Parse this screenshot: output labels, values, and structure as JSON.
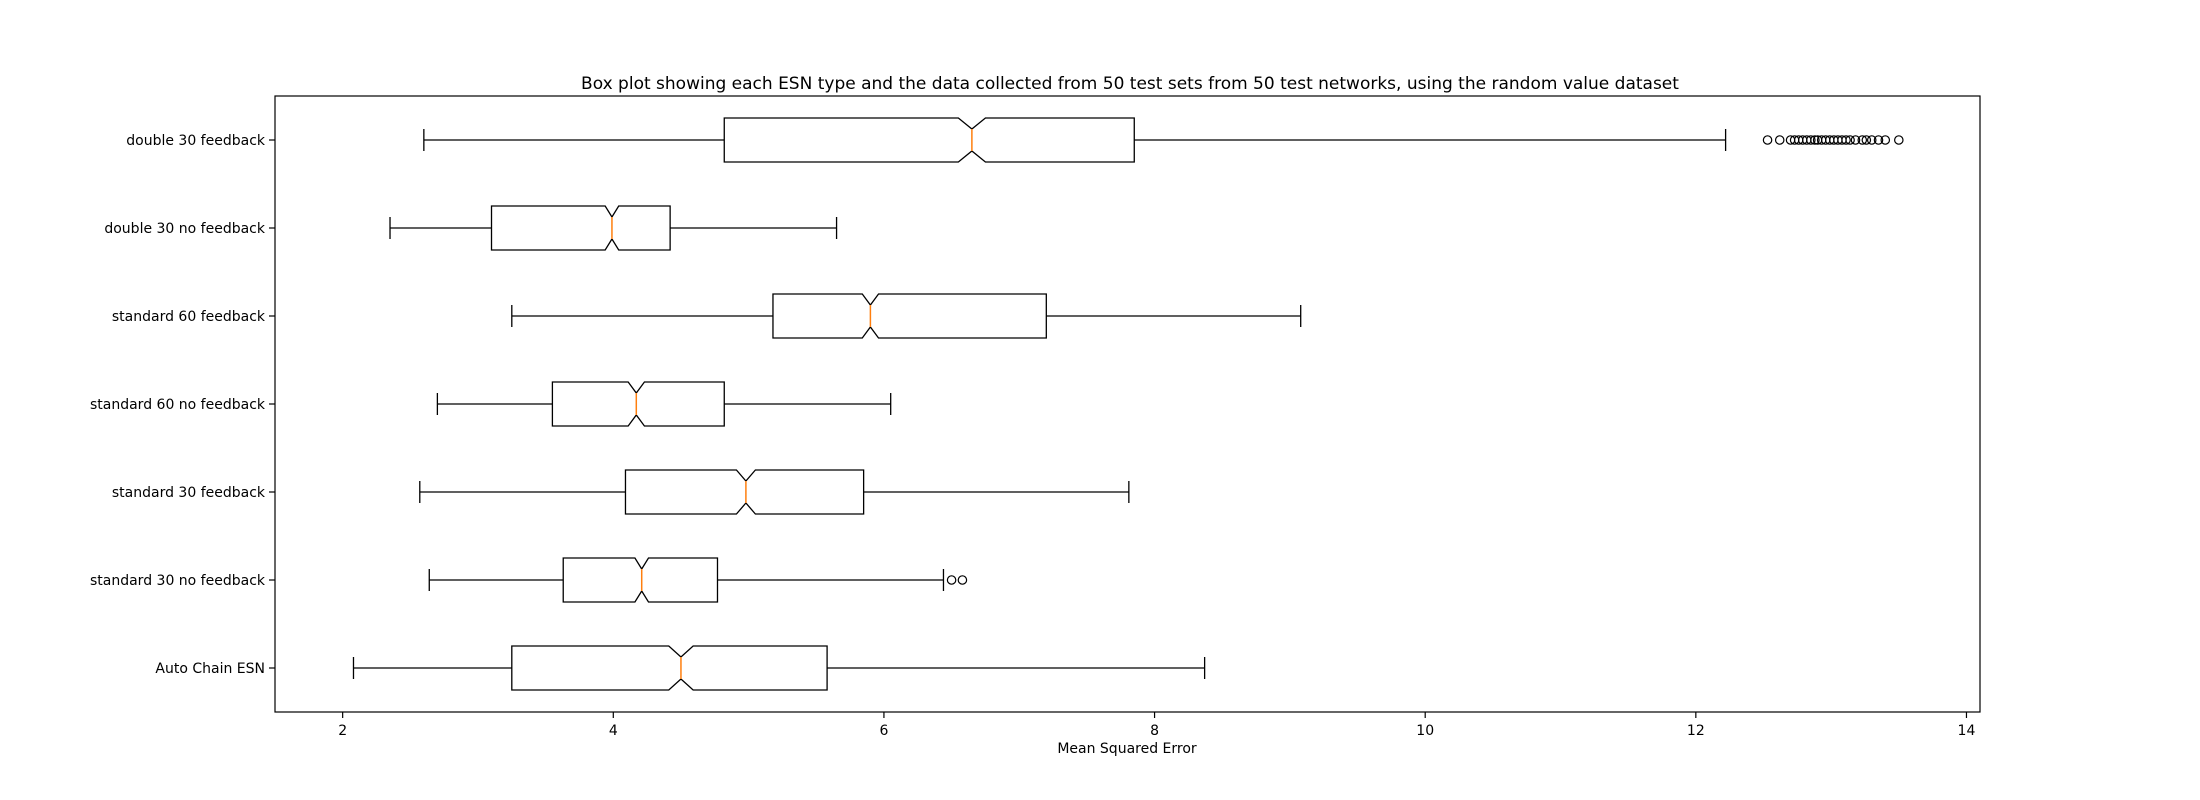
{
  "chart_data": {
    "type": "boxplot",
    "orientation": "horizontal",
    "notched": true,
    "title": "Box plot showing each ESN type and the data collected from 50 test sets from 50 test networks, using the random value dataset",
    "xlabel": "Mean Squared Error",
    "ylabel": "",
    "xlim": [
      1.5,
      14.1
    ],
    "xticks": [
      2,
      4,
      6,
      8,
      10,
      12,
      14
    ],
    "grid": false,
    "legend": "none",
    "colors": {
      "box": "#000000",
      "median": "#ff7f0e",
      "background": "#ffffff"
    },
    "categories": [
      "double 30 feedback",
      "double 30 no feedback",
      "standard 60 feedback",
      "standard 60 no feedback",
      "standard 30 feedback",
      "standard 30 no feedback",
      "Auto Chain ESN"
    ],
    "boxes": [
      {
        "label": "double 30 feedback",
        "whislo": 2.6,
        "q1": 4.82,
        "med": 6.65,
        "q3": 7.85,
        "whishi": 12.22,
        "notch_lo": 6.55,
        "notch_hi": 6.75,
        "fliers": [
          12.53,
          12.62,
          12.7,
          12.73,
          12.76,
          12.79,
          12.82,
          12.85,
          12.88,
          12.9,
          12.93,
          12.96,
          12.99,
          13.02,
          13.05,
          13.08,
          13.11,
          13.14,
          13.18,
          13.23,
          13.26,
          13.3,
          13.35,
          13.4,
          13.5
        ]
      },
      {
        "label": "double 30 no feedback",
        "whislo": 2.35,
        "q1": 3.1,
        "med": 3.99,
        "q3": 4.42,
        "whishi": 5.65,
        "notch_lo": 3.94,
        "notch_hi": 4.04,
        "fliers": []
      },
      {
        "label": "standard 60 feedback",
        "whislo": 3.25,
        "q1": 5.18,
        "med": 5.9,
        "q3": 7.2,
        "whishi": 9.08,
        "notch_lo": 5.84,
        "notch_hi": 5.96,
        "fliers": []
      },
      {
        "label": "standard 60 no feedback",
        "whislo": 2.7,
        "q1": 3.55,
        "med": 4.17,
        "q3": 4.82,
        "whishi": 6.05,
        "notch_lo": 4.11,
        "notch_hi": 4.23,
        "fliers": []
      },
      {
        "label": "standard 30 feedback",
        "whislo": 2.57,
        "q1": 4.09,
        "med": 4.98,
        "q3": 5.85,
        "whishi": 7.81,
        "notch_lo": 4.91,
        "notch_hi": 5.05,
        "fliers": []
      },
      {
        "label": "standard 30 no feedback",
        "whislo": 2.64,
        "q1": 3.63,
        "med": 4.21,
        "q3": 4.77,
        "whishi": 6.44,
        "notch_lo": 4.16,
        "notch_hi": 4.26,
        "fliers": [
          6.5,
          6.58
        ]
      },
      {
        "label": "Auto Chain ESN",
        "whislo": 2.08,
        "q1": 3.25,
        "med": 4.5,
        "q3": 5.58,
        "whishi": 8.37,
        "notch_lo": 4.41,
        "notch_hi": 4.59,
        "fliers": []
      }
    ]
  }
}
